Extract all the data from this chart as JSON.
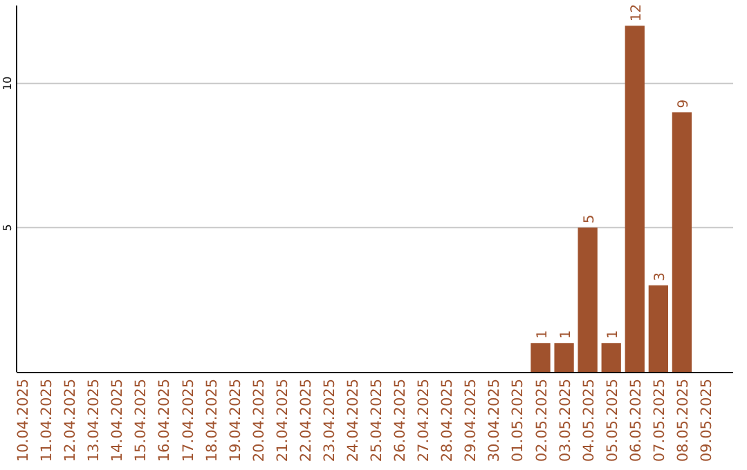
{
  "chart_data": {
    "type": "bar",
    "categories": [
      "10.04.2025",
      "11.04.2025",
      "12.04.2025",
      "13.04.2025",
      "14.04.2025",
      "15.04.2025",
      "16.04.2025",
      "17.04.2025",
      "18.04.2025",
      "19.04.2025",
      "20.04.2025",
      "21.04.2025",
      "22.04.2025",
      "23.04.2025",
      "24.04.2025",
      "25.04.2025",
      "26.04.2025",
      "27.04.2025",
      "28.04.2025",
      "29.04.2025",
      "30.04.2025",
      "01.05.2025",
      "02.05.2025",
      "03.05.2025",
      "04.05.2025",
      "05.05.2025",
      "06.05.2025",
      "07.05.2025",
      "08.05.2025",
      "09.05.2025"
    ],
    "values": [
      0,
      0,
      0,
      0,
      0,
      0,
      0,
      0,
      0,
      0,
      0,
      0,
      0,
      0,
      0,
      0,
      0,
      0,
      0,
      0,
      0,
      0,
      1,
      1,
      5,
      1,
      12,
      3,
      9,
      0
    ],
    "value_labels": [
      null,
      null,
      null,
      null,
      null,
      null,
      null,
      null,
      null,
      null,
      null,
      null,
      null,
      null,
      null,
      null,
      null,
      null,
      null,
      null,
      null,
      null,
      "1",
      "1",
      "5",
      "1",
      "12",
      "3",
      "9",
      null
    ],
    "color": "#a0522d",
    "ylim": [
      0,
      12.7
    ],
    "yticks": [
      5,
      10
    ],
    "grid": "y"
  }
}
